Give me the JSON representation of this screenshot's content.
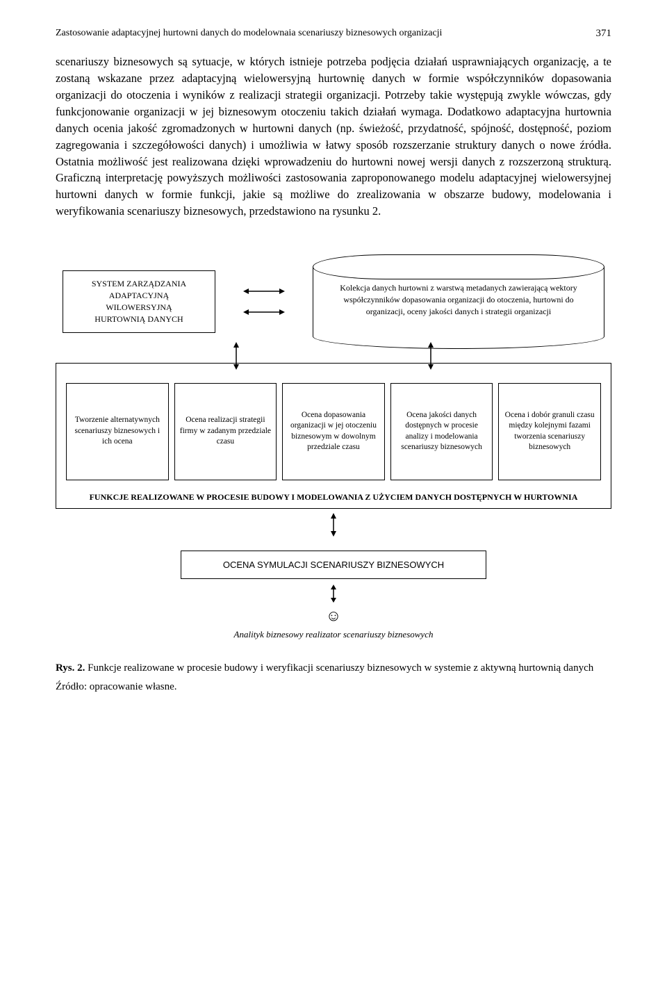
{
  "header": {
    "running_title": "Zastosowanie adaptacyjnej hurtowni danych do modelownaia scenariuszy biznesowych organizacji",
    "page_number": "371"
  },
  "paragraph": "scenariuszy biznesowych są sytuacje, w których istnieje potrzeba podjęcia działań usprawniających organizację, a te zostaną wskazane przez adaptacyjną wielowersyjną hurtownię danych w formie współczynników dopasowania organizacji do otoczenia i wyników z realizacji strategii organizacji. Potrzeby takie występują zwykle wówczas, gdy funkcjonowanie organizacji w jej biznesowym otoczeniu takich działań wymaga. Dodatkowo adaptacyjna hurtownia danych ocenia jakość zgromadzonych w hurtowni danych (np. świeżość, przydatność, spójność, dostępność, poziom zagregowania i szczegółowości danych) i umożliwia w łatwy sposób rozszerzanie struktury danych o nowe źródła. Ostatnia możliwość jest realizowana dzięki wprowadzeniu do hurtowni nowej wersji danych z rozszerzoną strukturą. Graficzną interpretację powyższych możliwości zastosowania zaproponowanego modelu adaptacyjnej wielowersyjnej hurtowni danych w formie funkcji, jakie są możliwe do zrealizowania w obszarze budowy, modelowania i weryfikowania scenariuszy biznesowych, przedstawiono na rysunku 2.",
  "diagram": {
    "system_box": "SYSTEM ZARZĄDZANIA\nADAPTACYJNĄ\nWILOWERSYJNĄ\nHURTOWNIĄ DANYCH",
    "cylinder_text": "Kolekcja danych hurtowni z warstwą metadanych zawierającą wektory współczynników dopasowania organizacji do otoczenia, hurtowni do organizacji, oceny jakości danych i strategii organizacji",
    "func_boxes": [
      "Tworzenie alternatywnych scenariuszy biznesowych i ich ocena",
      "Ocena realizacji strategii firmy w zadanym przedziale czasu",
      "Ocena dopasowania organizacji w jej otoczeniu biznesowym w dowolnym przedziale czasu",
      "Ocena jakości danych dostępnych w procesie analizy i modelowania scenariuszy biznesowych",
      "Ocena i dobór granuli czasu między kolejnymi fazami tworzenia scenariuszy biznesowych"
    ],
    "funcs_section_label": "FUNKCJE REALIZOWANE W PROCESIE  BUDOWY I MODELOWANIA Z UŻYCIEM DANYCH DOSTĘPNYCH W HURTOWNIA",
    "eval_box": "OCENA SYMULACJI SCENARIUSZY BIZNESOWYCH",
    "analyst_label": "Analityk biznesowy realizator scenariuszy biznesowych"
  },
  "figure": {
    "caption_prefix": "Rys. 2.",
    "caption_text": "Funkcje realizowane w procesie budowy i weryfikacji scenariuszy biznesowych w systemie z aktywną hurtownią danych",
    "source": "Źródło: opracowanie własne."
  }
}
